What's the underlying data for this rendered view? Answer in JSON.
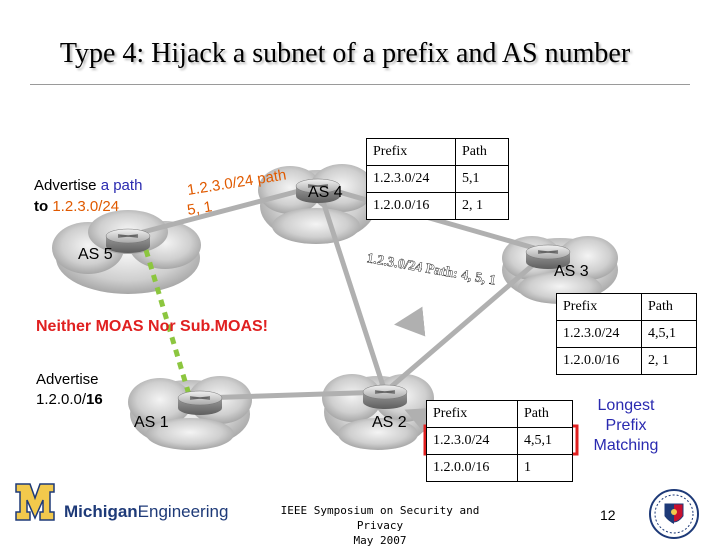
{
  "slide": {
    "title": "Type 4: Hijack a subnet of a prefix and AS number"
  },
  "nodes": {
    "as5": "AS 5",
    "as4": "AS 4",
    "as3": "AS 3",
    "as2": "AS 2",
    "as1": "AS 1"
  },
  "annotations": {
    "advertise_path_prefix": "Advertise",
    "advertise_path_colored": "a path",
    "advertise_path_to": "to",
    "advertise_path_net": "1.2.3.0/24",
    "slanted_route_line1": "1.2.3.0/24  path",
    "slanted_route_line2": "5, 1",
    "as4_to_as3_label": "1.2.3.0/24 Path: 4, 5, 1",
    "neither_moas": "Neither MOAS Nor Sub.MOAS!",
    "advertise2_line1": "Advertise",
    "advertise2_prefix": "1.2.0.0/",
    "advertise2_len": "16",
    "longest_prefix_line1": "Longest",
    "longest_prefix_line2": "Prefix",
    "longest_prefix_line3": "Matching"
  },
  "tables": {
    "as4": {
      "headers": [
        "Prefix",
        "Path"
      ],
      "rows": [
        [
          "1.2.3.0/24",
          "5,1"
        ],
        [
          "1.2.0.0/16",
          "2, 1"
        ]
      ]
    },
    "as3": {
      "headers": [
        "Prefix",
        "Path"
      ],
      "rows": [
        [
          "1.2.3.0/24",
          "4,5,1"
        ],
        [
          "1.2.0.0/16",
          "2, 1"
        ]
      ]
    },
    "as2": {
      "headers": [
        "Prefix",
        "Path"
      ],
      "rows": [
        [
          "1.2.3.0/24",
          "4,5,1"
        ],
        [
          "1.2.0.0/16",
          "1"
        ]
      ]
    }
  },
  "footer": {
    "logo_bold": "Michigan",
    "logo_light": "Engineering",
    "symposium_line1": "IEEE Symposium on Security and Privacy",
    "symposium_line2": "May 2007",
    "page_number": "12"
  },
  "colors": {
    "link_gray": "#b0b0b0",
    "hijack_green": "#8cc63f",
    "highlight_red": "#e02020",
    "text_blue": "#2a2ab0",
    "text_orange": "#e05a00",
    "neither_red": "#e02020",
    "logo_blue": "#1e3a78",
    "maize": "#f2c94c"
  }
}
